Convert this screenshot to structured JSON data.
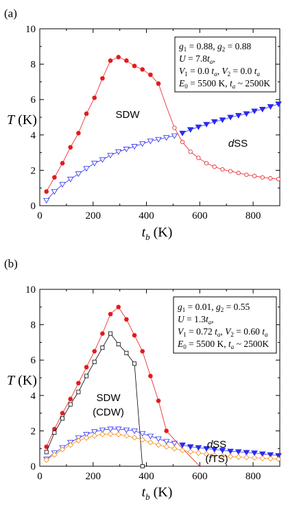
{
  "chart_data": [
    {
      "panel_label": "(a)",
      "type": "scatter",
      "xlabel": "t_b (K)",
      "ylabel": "T (K)",
      "xlim": [
        0,
        900
      ],
      "ylim": [
        0,
        10
      ],
      "xticks": [
        0,
        200,
        400,
        600,
        800
      ],
      "yticks": [
        0,
        2,
        4,
        6,
        8,
        10
      ],
      "annotation_lines": [
        "g1 = 0.88, g2 = 0.88",
        "U = 7.8ta,",
        "V1 = 0.0 ta, V2 = 0.0 ta",
        "E0 = 5500 K, ta ~ 2500K"
      ],
      "region_labels": [
        {
          "text": "SDW",
          "x": 280,
          "y": 5.1
        },
        {
          "text": "dSS",
          "x": 750,
          "y": 3.5
        }
      ],
      "series": [
        {
          "color": "#e8191d",
          "marker": "circle-filled",
          "x": [
            25,
            55,
            85,
            115,
            145,
            175,
            205,
            235,
            265,
            295,
            325,
            355,
            385,
            415,
            445
          ],
          "y": [
            0.8,
            1.6,
            2.4,
            3.3,
            4.1,
            5.2,
            6.1,
            7.2,
            8.2,
            8.4,
            8.2,
            7.9,
            7.7,
            7.4,
            6.9
          ]
        },
        {
          "color": "#e8191d",
          "marker": "line-only",
          "x": [
            445,
            475,
            505
          ],
          "y": [
            6.9,
            5.6,
            4.4
          ]
        },
        {
          "color": "#e8191d",
          "marker": "circle-open",
          "x": [
            505,
            535,
            565,
            595,
            625,
            655,
            685,
            715,
            745,
            775,
            805,
            835,
            865,
            895
          ],
          "y": [
            4.4,
            3.6,
            3.05,
            2.7,
            2.4,
            2.2,
            2.05,
            1.95,
            1.85,
            1.75,
            1.68,
            1.6,
            1.55,
            1.5
          ]
        },
        {
          "color": "#2a2af0",
          "marker": "triangle-down-open",
          "x": [
            25,
            55,
            85,
            115,
            145,
            175,
            205,
            235,
            265,
            295,
            325,
            355,
            385,
            415,
            445,
            475,
            505
          ],
          "y": [
            0.3,
            0.8,
            1.2,
            1.5,
            1.8,
            2.1,
            2.4,
            2.6,
            2.85,
            3.05,
            3.2,
            3.35,
            3.5,
            3.65,
            3.75,
            3.85,
            3.95
          ]
        },
        {
          "color": "#2a2af0",
          "marker": "triangle-down-filled",
          "x": [
            535,
            565,
            595,
            625,
            655,
            685,
            715,
            745,
            775,
            805,
            835,
            865,
            895
          ],
          "y": [
            4.1,
            4.3,
            4.45,
            4.6,
            4.75,
            4.85,
            5.0,
            5.1,
            5.2,
            5.35,
            5.45,
            5.6,
            5.75
          ]
        }
      ]
    },
    {
      "panel_label": "(b)",
      "type": "scatter",
      "xlabel": "t_b (K)",
      "ylabel": "T (K)",
      "xlim": [
        0,
        900
      ],
      "ylim": [
        0,
        10
      ],
      "xticks": [
        0,
        200,
        400,
        600,
        800
      ],
      "yticks": [
        0,
        2,
        4,
        6,
        8,
        10
      ],
      "annotation_lines": [
        "g1 = 0.01, g2 = 0.55",
        "U = 1.3ta,",
        "V1 = 0.72 ta, V2 = 0.60 ta",
        "E0 = 5500 K, ta ~ 2500K"
      ],
      "region_labels": [
        {
          "text": "SDW",
          "x": 245,
          "y": 3.9
        },
        {
          "text": "(CDW)",
          "x": 245,
          "y": 3.0
        },
        {
          "text": "dSS",
          "x": 640,
          "y": 1.55
        },
        {
          "text": "(fTS)",
          "x": 640,
          "y": 0.7
        }
      ],
      "series": [
        {
          "color": "#e8191d",
          "marker": "circle-filled",
          "x": [
            25,
            55,
            85,
            115,
            145,
            175,
            205,
            235,
            265,
            295,
            325,
            355,
            385,
            415,
            445,
            475
          ],
          "y": [
            1.1,
            2.1,
            3.0,
            3.8,
            4.7,
            5.6,
            6.5,
            7.5,
            8.6,
            9.0,
            8.3,
            7.4,
            6.5,
            5.1,
            3.7,
            2.0
          ]
        },
        {
          "color": "#e8191d",
          "marker": "line-only",
          "x": [
            475,
            535,
            600
          ],
          "y": [
            2.0,
            1.0,
            0.0
          ]
        },
        {
          "color": "#000000",
          "marker": "square-open",
          "x": [
            25,
            55,
            85,
            115,
            145,
            175,
            205,
            235,
            265,
            295,
            325,
            355,
            385
          ],
          "y": [
            0.8,
            1.9,
            2.7,
            3.5,
            4.2,
            5.1,
            5.9,
            6.7,
            7.5,
            6.9,
            6.4,
            5.8,
            0.0
          ]
        },
        {
          "color": "#2a2af0",
          "marker": "triangle-down-open",
          "x": [
            25,
            55,
            85,
            115,
            145,
            175,
            205,
            235,
            265,
            295,
            325,
            355,
            385,
            415,
            445,
            475,
            505
          ],
          "y": [
            0.4,
            0.75,
            1.05,
            1.35,
            1.6,
            1.8,
            1.95,
            2.05,
            2.1,
            2.1,
            2.05,
            2.0,
            1.85,
            1.7,
            1.55,
            1.4,
            1.3
          ]
        },
        {
          "color": "#2a2af0",
          "marker": "triangle-down-filled",
          "x": [
            535,
            565,
            595,
            625,
            655,
            685,
            715,
            745,
            775,
            805,
            835,
            865,
            895
          ],
          "y": [
            1.2,
            1.1,
            1.05,
            1.0,
            0.95,
            0.9,
            0.85,
            0.82,
            0.78,
            0.75,
            0.7,
            0.65,
            0.6
          ]
        },
        {
          "color": "#f28c1e",
          "marker": "diamond-open",
          "x": [
            25,
            55,
            85,
            115,
            145,
            175,
            205,
            235,
            265,
            295,
            325,
            355,
            385,
            415,
            445,
            475,
            505,
            535,
            565,
            595,
            625,
            655,
            685,
            715,
            745,
            775,
            805,
            835,
            865,
            895
          ],
          "y": [
            0.35,
            0.65,
            0.95,
            1.2,
            1.45,
            1.6,
            1.72,
            1.8,
            1.82,
            1.8,
            1.72,
            1.62,
            1.5,
            1.35,
            1.2,
            1.1,
            1.0,
            0.9,
            0.82,
            0.75,
            0.68,
            0.62,
            0.58,
            0.55,
            0.52,
            0.5,
            0.48,
            0.45,
            0.43,
            0.4
          ]
        }
      ]
    }
  ]
}
